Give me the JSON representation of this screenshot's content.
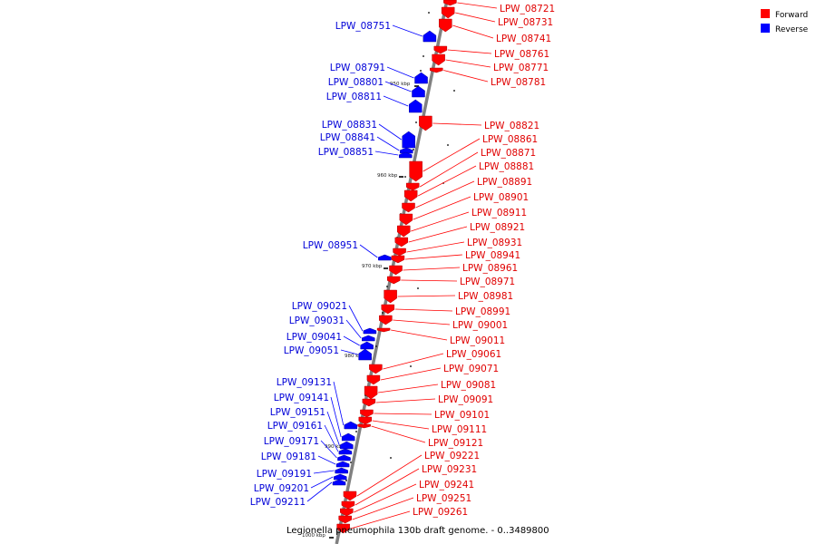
{
  "title": "Legionella pneumophila 130b draft genome. - 0..3489800",
  "legend": [
    {
      "label": "Forward",
      "color": "#ff0000"
    },
    {
      "label": "Reverse",
      "color": "#0000ff"
    }
  ],
  "colors": {
    "forward": "#ff0000",
    "reverse": "#0000ff",
    "backbone": "#808080"
  },
  "ticks": [
    {
      "label": "950 kbp",
      "pos": 950
    },
    {
      "label": "960 kbp",
      "pos": 960
    },
    {
      "label": "970 kbp",
      "pos": 970
    },
    {
      "label": "980 kbp",
      "pos": 980
    },
    {
      "label": "990 kbp",
      "pos": 990
    },
    {
      "label": "1000 kbp",
      "pos": 1000
    }
  ],
  "forward_genes": [
    "LPW_08721",
    "LPW_08731",
    "LPW_08741",
    "LPW_08761",
    "LPW_08771",
    "LPW_08781",
    "LPW_08821",
    "LPW_08861",
    "LPW_08871",
    "LPW_08881",
    "LPW_08891",
    "LPW_08901",
    "LPW_08911",
    "LPW_08921",
    "LPW_08931",
    "LPW_08941",
    "LPW_08961",
    "LPW_08971",
    "LPW_08981",
    "LPW_08991",
    "LPW_09001",
    "LPW_09011",
    "LPW_09061",
    "LPW_09071",
    "LPW_09081",
    "LPW_09091",
    "LPW_09101",
    "LPW_09111",
    "LPW_09121",
    "LPW_09221",
    "LPW_09231",
    "LPW_09241",
    "LPW_09251",
    "LPW_09261"
  ],
  "reverse_genes": [
    "LPW_08751",
    "LPW_08791",
    "LPW_08801",
    "LPW_08811",
    "LPW_08831",
    "LPW_08841",
    "LPW_08851",
    "LPW_08951",
    "LPW_09021",
    "LPW_09031",
    "LPW_09041",
    "LPW_09051",
    "LPW_09131",
    "LPW_09141",
    "LPW_09151",
    "LPW_09161",
    "LPW_09171",
    "LPW_09181",
    "LPW_09191",
    "LPW_09201",
    "LPW_09211"
  ]
}
